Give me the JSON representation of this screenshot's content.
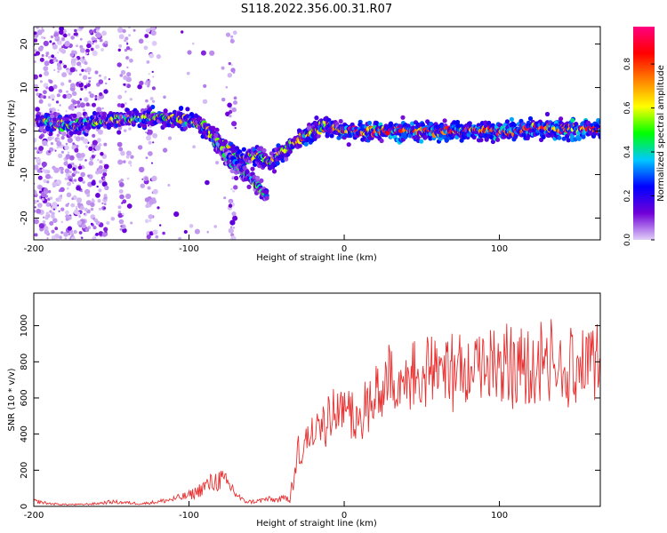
{
  "chart_data": [
    {
      "type": "heatmap",
      "title": "S118.2022.356.00.31.R07",
      "xlabel": "Height of straight line (km)",
      "ylabel": "Frequency (Hz)",
      "xlim": [
        -200,
        165
      ],
      "ylim": [
        -25,
        24
      ],
      "x_ticks": [
        -200,
        -100,
        0,
        100
      ],
      "y_ticks": [
        -20,
        -10,
        0,
        10,
        20
      ],
      "colorbar": {
        "label": "Normalized spectral amplitude",
        "ticks": [
          "0.0",
          "0.2",
          "0.4",
          "0.6",
          "0.8"
        ],
        "tick_values": [
          0.0,
          0.2,
          0.4,
          0.6,
          0.8
        ],
        "range": [
          0,
          0.97
        ],
        "colormap": [
          "#e0d0f8",
          "#7000d8",
          "#0000ff",
          "#00c8ff",
          "#00ff00",
          "#ffff00",
          "#ff8000",
          "#ff0000",
          "#ff0080"
        ]
      },
      "ridge": {
        "x": [
          -198,
          -190,
          -180,
          -170,
          -160,
          -150,
          -140,
          -130,
          -120,
          -110,
          -100,
          -95,
          -90,
          -85,
          -80,
          -75,
          -70,
          -65,
          -60,
          -55,
          -50,
          -45,
          -40,
          -35,
          -30,
          -25,
          -20,
          -15,
          -10,
          -5,
          0,
          10,
          20,
          30,
          40,
          50,
          60,
          70,
          80,
          90,
          100,
          110,
          120,
          130,
          140,
          150,
          160,
          165
        ],
        "y": [
          2.5,
          2,
          1.5,
          1.5,
          2,
          2.5,
          3,
          3,
          3,
          3,
          2.5,
          2,
          1,
          -1,
          -3,
          -4.5,
          -5.5,
          -6.5,
          -6,
          -5.5,
          -7,
          -6.5,
          -5,
          -3.5,
          -2,
          -1,
          0,
          1,
          1.5,
          0.5,
          0,
          0,
          0,
          0,
          0,
          0,
          0,
          0,
          0,
          0,
          0,
          0,
          0.5,
          0.5,
          0.5,
          0.5,
          0.5,
          0.5
        ]
      },
      "branch": {
        "x": [
          -85,
          -80,
          -75,
          -70,
          -65,
          -60,
          -55,
          -50
        ],
        "y": [
          -1.5,
          -4,
          -6.5,
          -8,
          -9.5,
          -11,
          -13,
          -15
        ]
      }
    },
    {
      "type": "line",
      "xlabel": "Height of straight line (km)",
      "ylabel": "SNR (10 * v/v)",
      "xlim": [
        -200,
        165
      ],
      "ylim": [
        0,
        1180
      ],
      "x_ticks": [
        -200,
        -100,
        0,
        100
      ],
      "y_ticks": [
        0,
        200,
        400,
        600,
        800,
        1000
      ],
      "color": "#e83030",
      "series": [
        {
          "x": [
            -200,
            -190,
            -180,
            -170,
            -160,
            -150,
            -140,
            -130,
            -120,
            -110,
            -100,
            -95,
            -90,
            -85,
            -80,
            -75,
            -72,
            -70,
            -65,
            -60,
            -55,
            -50,
            -45,
            -40,
            -35,
            -33,
            -30,
            -25,
            -20,
            -15,
            -10,
            -5,
            0,
            5,
            10,
            15,
            20,
            25,
            30,
            35,
            40,
            45,
            50,
            55,
            60,
            65,
            70,
            75,
            80,
            85,
            90,
            95,
            100,
            105,
            110,
            115,
            120,
            125,
            130,
            135,
            140,
            145,
            150,
            155,
            160,
            165
          ],
          "values": [
            30,
            15,
            10,
            10,
            15,
            25,
            20,
            15,
            25,
            40,
            60,
            80,
            110,
            130,
            150,
            120,
            100,
            70,
            30,
            25,
            30,
            40,
            35,
            40,
            50,
            130,
            320,
            360,
            400,
            440,
            500,
            560,
            540,
            480,
            450,
            560,
            620,
            680,
            720,
            730,
            720,
            700,
            760,
            740,
            730,
            750,
            770,
            760,
            770,
            780,
            750,
            760,
            780,
            800,
            780,
            790,
            760,
            810,
            770,
            800,
            780,
            780,
            790,
            800,
            820,
            780
          ]
        }
      ]
    }
  ]
}
